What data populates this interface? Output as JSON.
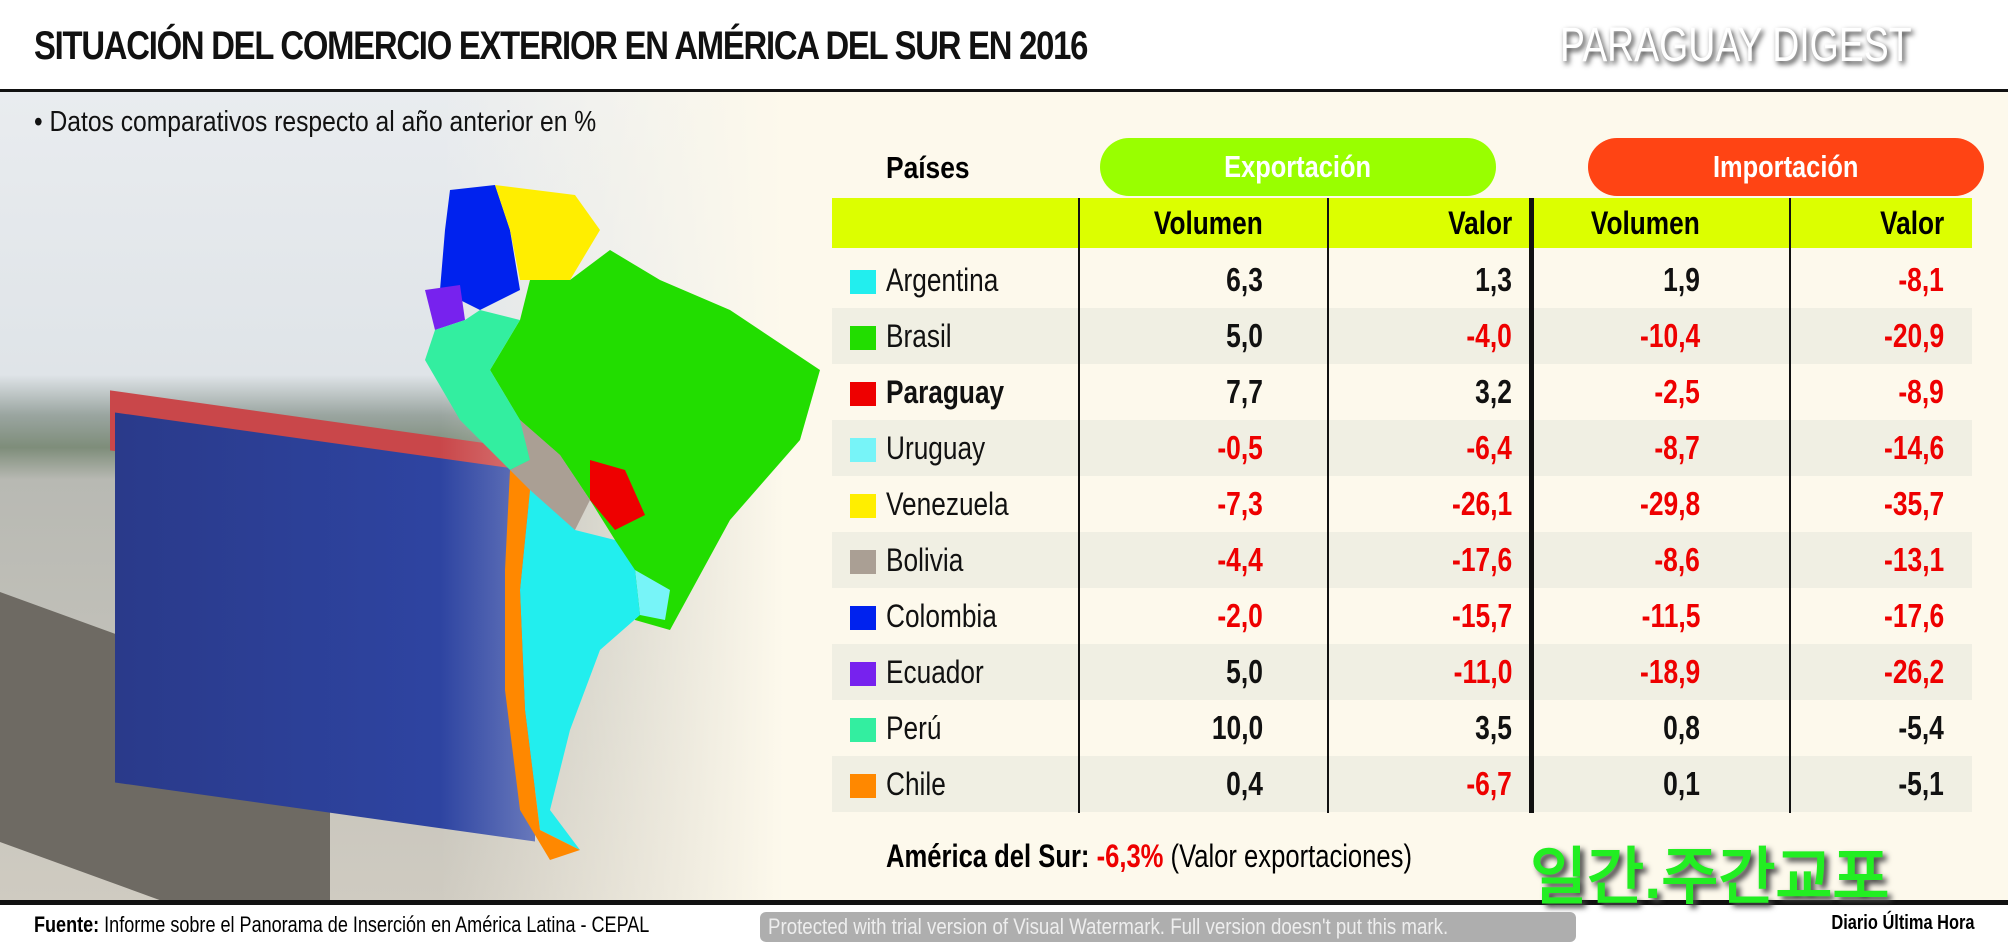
{
  "title": "SITUACIÓN DEL COMERCIO EXTERIOR EN AMÉRICA DEL SUR EN 2016",
  "subtitle": "• Datos comparativos respecto al año anterior en %",
  "table": {
    "countries_header": "Países",
    "export_header": "Exportación",
    "import_header": "Importación",
    "sub_headers": [
      "Volumen",
      "Valor",
      "Volumen",
      "Valor"
    ],
    "colors": {
      "export": "#99ff00",
      "import": "#ff4414",
      "negative": "#ee0000",
      "positive": "#111111"
    },
    "rows": [
      {
        "country": "Argentina",
        "color": "#22eeee",
        "values": [
          "6,3",
          "1,3",
          "1,9",
          "-8,1"
        ]
      },
      {
        "country": "Brasil",
        "color": "#22dd00",
        "values": [
          "5,0",
          "-4,0",
          "-10,4",
          "-20,9"
        ]
      },
      {
        "country": "Paraguay",
        "color": "#ee0000",
        "values": [
          "7,7",
          "3,2",
          "-2,5",
          "-8,9"
        ],
        "bold": true
      },
      {
        "country": "Uruguay",
        "color": "#77f4f8",
        "values": [
          "-0,5",
          "-6,4",
          "-8,7",
          "-14,6"
        ]
      },
      {
        "country": "Venezuela",
        "color": "#ffee00",
        "values": [
          "-7,3",
          "-26,1",
          "-29,8",
          "-35,7"
        ]
      },
      {
        "country": "Bolivia",
        "color": "#aa9f94",
        "values": [
          "-4,4",
          "-17,6",
          "-8,6",
          "-13,1"
        ]
      },
      {
        "country": "Colombia",
        "color": "#0022ee",
        "values": [
          "-2,0",
          "-15,7",
          "-11,5",
          "-17,6"
        ]
      },
      {
        "country": "Ecuador",
        "color": "#7722ee",
        "values": [
          "5,0",
          "-11,0",
          "-18,9",
          "-26,2"
        ]
      },
      {
        "country": "Perú",
        "color": "#33eea0",
        "values": [
          "10,0",
          "3,5",
          "0,8",
          "-5,4"
        ]
      },
      {
        "country": "Chile",
        "color": "#ff8800",
        "values": [
          "0,4",
          "-6,7",
          "0,1",
          "-5,1"
        ]
      }
    ]
  },
  "summary": {
    "label": "América del Sur:",
    "value": "-6,3%",
    "note": "(Valor exportaciones)"
  },
  "footer": {
    "source_label": "Fuente:",
    "source_text": "Informe sobre el Panorama de Inserción en América Latina - CEPAL",
    "credit": "Diario Última Hora"
  },
  "watermarks": {
    "digest": "PARAGUAY DIGEST",
    "korean": "일간.주간교포",
    "trial": "Protected with trial version of Visual Watermark. Full version doesn't put this mark."
  }
}
